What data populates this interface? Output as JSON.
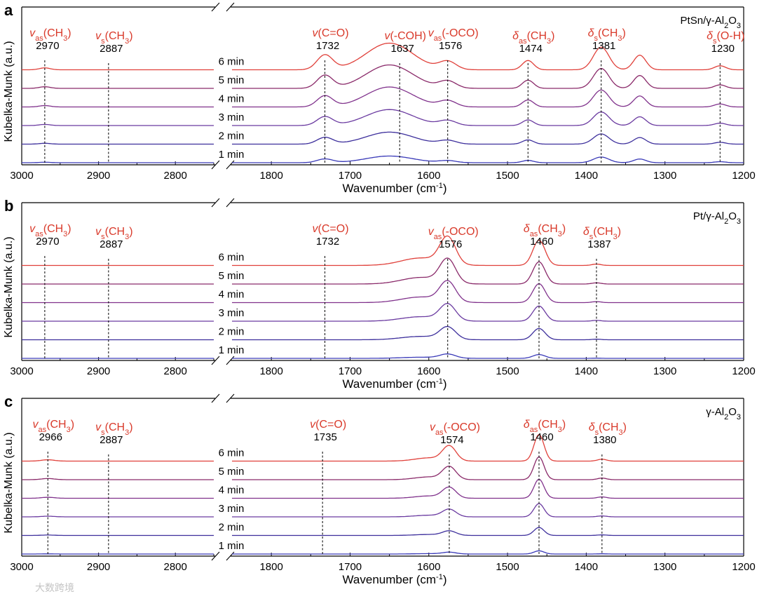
{
  "watermark": "大数跨境",
  "chart_data": [
    {
      "type": "line",
      "panel": "a",
      "sample": "PtSn/γ-Al2O3",
      "xlabel": "Wavenumber (cm-1)",
      "ylabel": "Kubelka-Munk (a.u.)",
      "x_ticks": [
        3000,
        2900,
        2800,
        1800,
        1700,
        1600,
        1500,
        1400,
        1300,
        1200
      ],
      "x_break": [
        2750,
        1850
      ],
      "series": [
        {
          "name": "1 min",
          "color": "#3a3ab8"
        },
        {
          "name": "2 min",
          "color": "#3d2f9c"
        },
        {
          "name": "3 min",
          "color": "#6a3aa0"
        },
        {
          "name": "4 min",
          "color": "#80328c"
        },
        {
          "name": "5 min",
          "color": "#8a2a6a"
        },
        {
          "name": "6 min",
          "color": "#e0403a"
        }
      ],
      "curve_peaks": [
        [
          1732,
          0.55,
          14
        ],
        [
          1650,
          1.0,
          42
        ],
        [
          1576,
          0.3,
          15
        ],
        [
          1474,
          0.35,
          10
        ],
        [
          1381,
          0.85,
          14
        ],
        [
          1332,
          0.55,
          11
        ],
        [
          1230,
          0.15,
          10
        ],
        [
          2970,
          0.07,
          10
        ]
      ],
      "series_scale": [
        0.25,
        0.45,
        0.6,
        0.75,
        0.88,
        1.0
      ],
      "peaks": [
        {
          "sym": "v",
          "sub": "as",
          "species": "(CH3)",
          "value": "2970",
          "x": 2970
        },
        {
          "sym": "v",
          "sub": "s",
          "species": "(CH3)",
          "value": "2887",
          "x": 2887
        },
        {
          "sym": "v",
          "sub": "",
          "species": "(C=O)",
          "value": "1732",
          "x": 1732
        },
        {
          "sym": "v",
          "sub": "",
          "species": "(-COH)",
          "value": "1637",
          "x": 1637
        },
        {
          "sym": "v",
          "sub": "as",
          "species": "(-OCO)",
          "value": "1576",
          "x": 1576
        },
        {
          "sym": "δ",
          "sub": "as",
          "species": "(CH3)",
          "value": "1474",
          "x": 1474
        },
        {
          "sym": "δ",
          "sub": "s",
          "species": "(CH3)",
          "value": "1381",
          "x": 1381
        },
        {
          "sym": "δ",
          "sub": "s",
          "species": "(O-H)",
          "value": "1230",
          "x": 1230
        }
      ]
    },
    {
      "type": "line",
      "panel": "b",
      "sample": "Pt/γ-Al2O3",
      "xlabel": "Wavenumber (cm-1)",
      "ylabel": "Kubelka-Munk (a.u.)",
      "x_ticks": [
        3000,
        2900,
        2800,
        1800,
        1700,
        1600,
        1500,
        1400,
        1300,
        1200
      ],
      "x_break": [
        2750,
        1850
      ],
      "series": [
        {
          "name": "1 min",
          "color": "#3a3ab8"
        },
        {
          "name": "2 min",
          "color": "#3d2f9c"
        },
        {
          "name": "3 min",
          "color": "#6a3aa0"
        },
        {
          "name": "4 min",
          "color": "#80328c"
        },
        {
          "name": "5 min",
          "color": "#8a2a6a"
        },
        {
          "name": "6 min",
          "color": "#e0403a"
        }
      ],
      "curve_peaks": [
        [
          1576,
          1.0,
          14
        ],
        [
          1610,
          0.28,
          35
        ],
        [
          1460,
          0.95,
          11
        ],
        [
          1387,
          0.05,
          8
        ]
      ],
      "series_scale": [
        0.15,
        0.45,
        0.6,
        0.75,
        0.88,
        1.0
      ],
      "peaks": [
        {
          "sym": "v",
          "sub": "as",
          "species": "(CH3)",
          "value": "2970",
          "x": 2970
        },
        {
          "sym": "v",
          "sub": "s",
          "species": "(CH3)",
          "value": "2887",
          "x": 2887
        },
        {
          "sym": "v",
          "sub": "",
          "species": "(C=O)",
          "value": "1732",
          "x": 1732
        },
        {
          "sym": "v",
          "sub": "as",
          "species": "(-OCO)",
          "value": "1576",
          "x": 1576
        },
        {
          "sym": "δ",
          "sub": "as",
          "species": "(CH3)",
          "value": "1460",
          "x": 1460
        },
        {
          "sym": "δ",
          "sub": "s",
          "species": "(CH3)",
          "value": "1387",
          "x": 1387
        }
      ]
    },
    {
      "type": "line",
      "panel": "c",
      "sample": "γ-Al2O3",
      "xlabel": "Wavenumber (cm-1)",
      "ylabel": "Kubelka-Munk (a.u.)",
      "x_ticks": [
        3000,
        2900,
        2800,
        1800,
        1700,
        1600,
        1500,
        1400,
        1300,
        1200
      ],
      "x_break": [
        2750,
        1850
      ],
      "series": [
        {
          "name": "1 min",
          "color": "#3a3ab8"
        },
        {
          "name": "2 min",
          "color": "#3d2f9c"
        },
        {
          "name": "3 min",
          "color": "#6a3aa0"
        },
        {
          "name": "4 min",
          "color": "#80328c"
        },
        {
          "name": "5 min",
          "color": "#8a2a6a"
        },
        {
          "name": "6 min",
          "color": "#e0403a"
        }
      ],
      "curve_peaks": [
        [
          1574,
          0.55,
          12
        ],
        [
          1600,
          0.12,
          25
        ],
        [
          1460,
          1.0,
          9
        ],
        [
          1380,
          0.07,
          8
        ],
        [
          2966,
          0.05,
          12
        ]
      ],
      "series_scale": [
        0.12,
        0.3,
        0.5,
        0.72,
        0.86,
        1.0
      ],
      "peaks": [
        {
          "sym": "v",
          "sub": "as",
          "species": "(CH3)",
          "value": "2966",
          "x": 2966
        },
        {
          "sym": "v",
          "sub": "s",
          "species": "(CH3)",
          "value": "2887",
          "x": 2887
        },
        {
          "sym": "v",
          "sub": "",
          "species": "(C=O)",
          "value": "1735",
          "x": 1735
        },
        {
          "sym": "v",
          "sub": "as",
          "species": "(-OCO)",
          "value": "1574",
          "x": 1574
        },
        {
          "sym": "δ",
          "sub": "as",
          "species": "(CH3)",
          "value": "1460",
          "x": 1460
        },
        {
          "sym": "δ",
          "sub": "s",
          "species": "(CH3)",
          "value": "1380",
          "x": 1380
        }
      ]
    }
  ]
}
